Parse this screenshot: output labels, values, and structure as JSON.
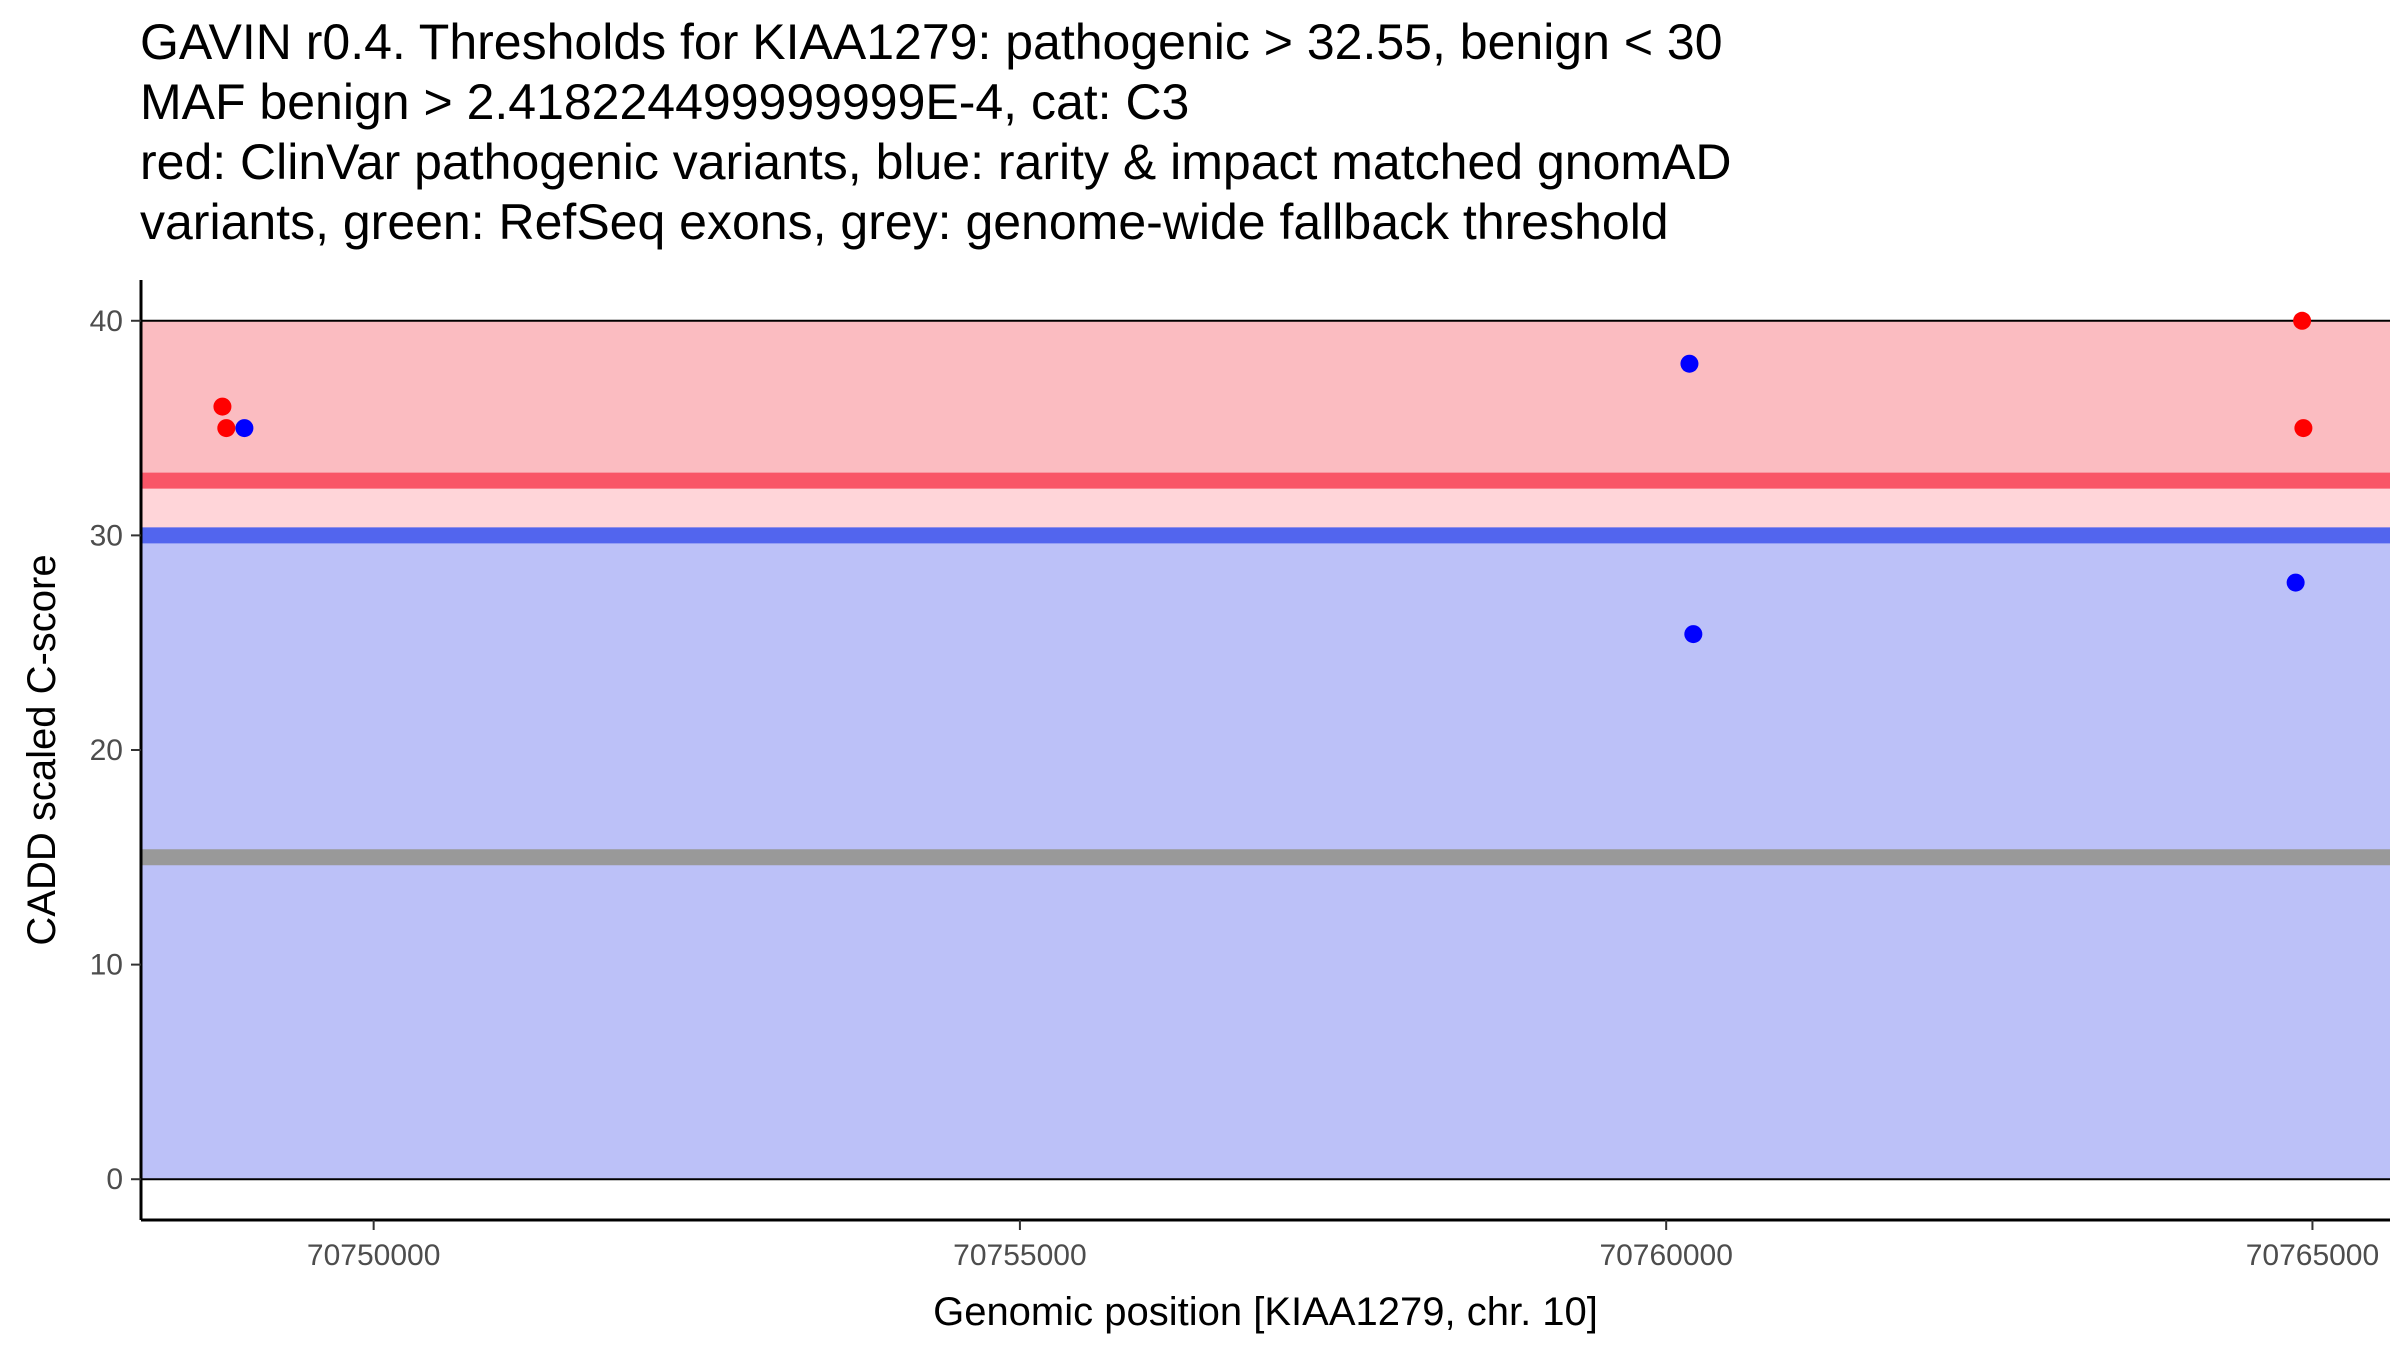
{
  "chart_data": {
    "type": "scatter",
    "title_lines": [
      "GAVIN r0.4. Thresholds for KIAA1279: pathogenic > 32.55, benign < 30",
      "MAF benign > 2.418224499999999E-4, cat: C3",
      "red: ClinVar pathogenic variants, blue: rarity & impact matched gnomAD",
      "variants, green: RefSeq exons, grey: genome-wide fallback threshold"
    ],
    "xlabel": "Genomic position [KIAA1279, chr. 10]",
    "ylabel": "CADD scaled C-score",
    "xlim": [
      70748200,
      70765600
    ],
    "ylim": [
      -1.9,
      41.9
    ],
    "xticks": [
      70750000,
      70755000,
      70760000,
      70765000
    ],
    "xtick_labels": [
      "70750000",
      "70755000",
      "70760000",
      "70765000"
    ],
    "yticks": [
      0,
      10,
      20,
      30,
      40
    ],
    "ytick_labels": [
      "0",
      "10",
      "20",
      "30",
      "40"
    ],
    "bands": [
      {
        "name": "pathogenic-band",
        "from": 32.55,
        "to": 40,
        "color": "#fbbcc1"
      },
      {
        "name": "grey-zone-band",
        "from": 30,
        "to": 32.55,
        "color": "#ffd5d9"
      },
      {
        "name": "benign-band",
        "from": 0,
        "to": 30,
        "color": "#bcc1f8"
      }
    ],
    "thresholds": [
      {
        "name": "pathogenic-threshold-line",
        "value": 32.55,
        "color": "#f95667"
      },
      {
        "name": "benign-threshold-line",
        "value": 30,
        "color": "#5265ee"
      },
      {
        "name": "fallback-threshold-line",
        "value": 15,
        "color": "#999999"
      }
    ],
    "series": [
      {
        "name": "ClinVar pathogenic variants",
        "color": "#ff0000",
        "points": [
          {
            "x": 70748830,
            "y": 36
          },
          {
            "x": 70748860,
            "y": 35
          },
          {
            "x": 70764920,
            "y": 40
          },
          {
            "x": 70764930,
            "y": 35
          }
        ]
      },
      {
        "name": "rarity & impact matched gnomAD variants",
        "color": "#0000ff",
        "points": [
          {
            "x": 70749000,
            "y": 35
          },
          {
            "x": 70760180,
            "y": 38
          },
          {
            "x": 70760210,
            "y": 25.4
          },
          {
            "x": 70764870,
            "y": 27.8
          }
        ]
      }
    ]
  }
}
